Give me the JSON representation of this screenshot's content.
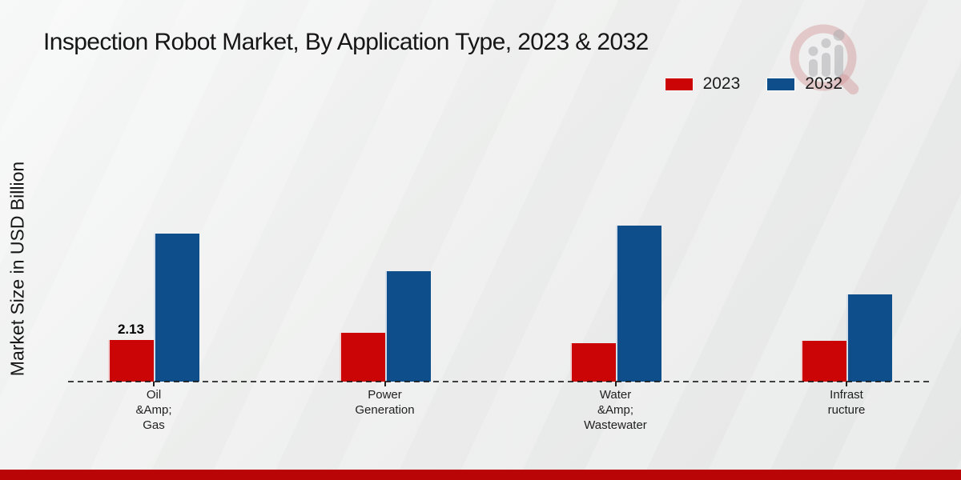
{
  "title": "Inspection Robot Market, By Application Type, 2023 & 2032",
  "ylabel": "Market Size in USD Billion",
  "legend": {
    "items": [
      {
        "label": "2023",
        "color": "#cb0506"
      },
      {
        "label": "2032",
        "color": "#0e4e8b"
      }
    ]
  },
  "watermark": {
    "name": "market-research-logo",
    "ring_color": "rgba(205,130,134,0.40)",
    "bars_color": "rgba(168,168,172,0.55)"
  },
  "footer": {
    "bar_color": "#ba0506"
  },
  "chart_data": {
    "type": "bar",
    "title": "Inspection Robot Market, By Application Type, 2023 & 2032",
    "xlabel": "",
    "ylabel": "Market Size in USD Billion",
    "categories": [
      "Oil &Amp; Gas",
      "Power Generation",
      "Water &Amp; Wastewater",
      "Infrastructure"
    ],
    "category_display_lines": [
      [
        "Oil",
        "&Amp;",
        "Gas"
      ],
      [
        "Power",
        "Generation"
      ],
      [
        "Water",
        "&Amp;",
        "Wastewater"
      ],
      [
        "Infrast",
        "ructure"
      ]
    ],
    "series": [
      {
        "name": "2023",
        "color": "#cb0506",
        "values": [
          2.13,
          2.5,
          1.95,
          2.1
        ]
      },
      {
        "name": "2032",
        "color": "#0e4e8b",
        "values": [
          7.6,
          5.65,
          8.0,
          4.45
        ]
      }
    ],
    "annotations": [
      {
        "series_index": 0,
        "category_index": 0,
        "text": "2.13"
      }
    ],
    "ylim": [
      0,
      8.5
    ],
    "grid": false,
    "axis_style": "dashed-baseline-only",
    "legend_position": "top-right"
  }
}
